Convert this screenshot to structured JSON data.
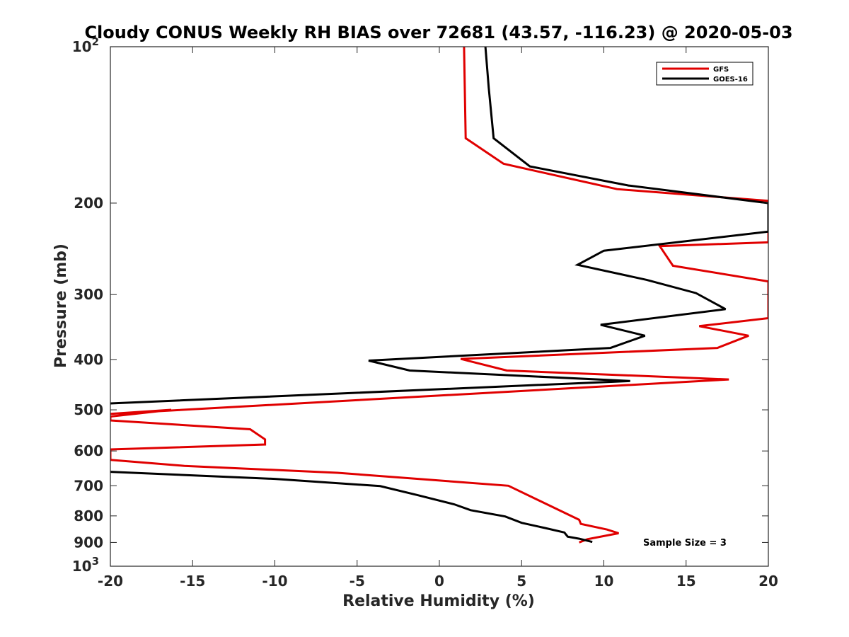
{
  "chart_data": {
    "type": "line",
    "title": "Cloudy CONUS Weekly RH BIAS over 72681 (43.57, -116.23) @ 2020-05-03",
    "xlabel": "Relative Humidity (%)",
    "ylabel": "Pressure (mb)",
    "xlim": [
      -20,
      20
    ],
    "ylim": [
      100,
      1000
    ],
    "yscale": "log",
    "y_reversed": true,
    "grid": false,
    "legend_position": "top-right",
    "x_ticks": [
      -20,
      -15,
      -10,
      -5,
      0,
      5,
      10,
      15,
      20
    ],
    "y_ticks": [
      {
        "value": 100,
        "label": "10",
        "sup": "2"
      },
      {
        "value": 200,
        "label": "200",
        "sup": ""
      },
      {
        "value": 300,
        "label": "300",
        "sup": ""
      },
      {
        "value": 400,
        "label": "400",
        "sup": ""
      },
      {
        "value": 500,
        "label": "500",
        "sup": ""
      },
      {
        "value": 600,
        "label": "600",
        "sup": ""
      },
      {
        "value": 700,
        "label": "700",
        "sup": ""
      },
      {
        "value": 800,
        "label": "800",
        "sup": ""
      },
      {
        "value": 900,
        "label": "900",
        "sup": ""
      },
      {
        "value": 1000,
        "label": "10",
        "sup": "3"
      }
    ],
    "series": [
      {
        "name": "GFS",
        "color": "#e00000",
        "points": [
          {
            "x": 1.5,
            "y": 100
          },
          {
            "x": 1.6,
            "y": 150
          },
          {
            "x": 3.9,
            "y": 168
          },
          {
            "x": 10.8,
            "y": 188
          },
          {
            "x": 20,
            "y": 198
          },
          {
            "x": 20,
            "y": 238
          },
          {
            "x": 13.4,
            "y": 242
          },
          {
            "x": 14.2,
            "y": 264
          },
          {
            "x": 20,
            "y": 283
          },
          {
            "x": 20,
            "y": 333
          },
          {
            "x": 15.8,
            "y": 345
          },
          {
            "x": 18.8,
            "y": 360
          },
          {
            "x": 16.9,
            "y": 380
          },
          {
            "x": 1.3,
            "y": 399
          },
          {
            "x": 4.1,
            "y": 420
          },
          {
            "x": 17.6,
            "y": 437
          },
          {
            "x": -20,
            "y": 509
          },
          {
            "x": -16.3,
            "y": 500
          },
          {
            "x": -20,
            "y": 515
          },
          {
            "x": -20,
            "y": 524
          },
          {
            "x": -11.5,
            "y": 545
          },
          {
            "x": -10.6,
            "y": 570
          },
          {
            "x": -10.6,
            "y": 583
          },
          {
            "x": -20,
            "y": 596
          },
          {
            "x": -20,
            "y": 624
          },
          {
            "x": -15.5,
            "y": 641
          },
          {
            "x": -6.2,
            "y": 661
          },
          {
            "x": 4.2,
            "y": 700
          },
          {
            "x": 8.5,
            "y": 814
          },
          {
            "x": 8.6,
            "y": 829
          },
          {
            "x": 10.2,
            "y": 850
          },
          {
            "x": 10.9,
            "y": 864
          },
          {
            "x": 9,
            "y": 887
          },
          {
            "x": 8.5,
            "y": 900
          }
        ]
      },
      {
        "name": "GOES-16",
        "color": "#000000",
        "points": [
          {
            "x": 2.8,
            "y": 100
          },
          {
            "x": 3,
            "y": 120
          },
          {
            "x": 3.3,
            "y": 150
          },
          {
            "x": 5.5,
            "y": 170
          },
          {
            "x": 11.5,
            "y": 185
          },
          {
            "x": 20,
            "y": 200
          },
          {
            "x": 20,
            "y": 227
          },
          {
            "x": 10,
            "y": 247
          },
          {
            "x": 8.4,
            "y": 263
          },
          {
            "x": 12.6,
            "y": 281
          },
          {
            "x": 15.6,
            "y": 298
          },
          {
            "x": 17.4,
            "y": 320
          },
          {
            "x": 9.8,
            "y": 343
          },
          {
            "x": 12.5,
            "y": 360
          },
          {
            "x": 10.4,
            "y": 380
          },
          {
            "x": -4.3,
            "y": 402
          },
          {
            "x": -1.8,
            "y": 420
          },
          {
            "x": 11.6,
            "y": 440
          },
          {
            "x": -20,
            "y": 486
          }
        ]
      },
      {
        "name": "GOES-16",
        "color": "#000000",
        "points": [
          {
            "x": -20,
            "y": 658
          },
          {
            "x": -10,
            "y": 679
          },
          {
            "x": -3.6,
            "y": 701
          },
          {
            "x": -1.3,
            "y": 730
          },
          {
            "x": 0.9,
            "y": 760
          },
          {
            "x": 1.9,
            "y": 780
          },
          {
            "x": 4,
            "y": 802
          },
          {
            "x": 5,
            "y": 825
          },
          {
            "x": 6.4,
            "y": 844
          },
          {
            "x": 7.6,
            "y": 861
          },
          {
            "x": 7.8,
            "y": 877
          },
          {
            "x": 8.5,
            "y": 885
          },
          {
            "x": 9.3,
            "y": 898
          }
        ]
      }
    ],
    "legend": [
      {
        "label": "GFS",
        "color": "#e00000"
      },
      {
        "label": "GOES-16",
        "color": "#000000"
      }
    ],
    "annotation": "Sample Size = 3"
  }
}
